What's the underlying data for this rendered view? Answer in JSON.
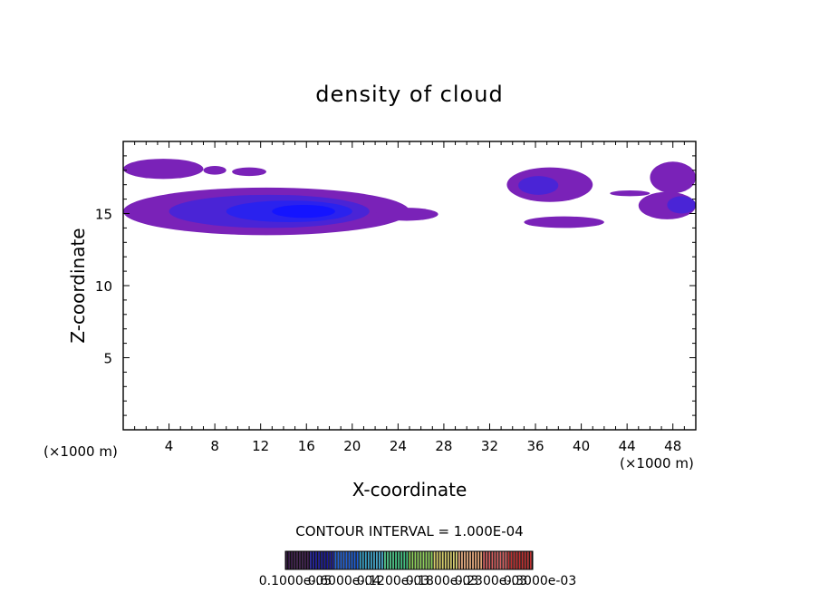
{
  "chart_data": {
    "type": "heatmap",
    "title": "density of cloud",
    "xlabel": "X-coordinate",
    "ylabel": "Z-coordinate",
    "x_unit_left": "(×1000 m)",
    "x_unit_right": "(×1000 m)",
    "xlim": [
      0,
      50
    ],
    "ylim": [
      0,
      20
    ],
    "x_ticks": [
      4,
      8,
      12,
      16,
      20,
      24,
      28,
      32,
      36,
      40,
      44,
      48
    ],
    "x_tick_labels": [
      "4",
      "8",
      "12",
      "16",
      "20",
      "24",
      "28",
      "32",
      "36",
      "40",
      "44",
      "48"
    ],
    "y_ticks": [
      5,
      10,
      15
    ],
    "y_tick_labels": [
      "5",
      "10",
      "15"
    ],
    "contour_interval_text": "CONTOUR INTERVAL = 1.000E-04",
    "colorbar_labels": [
      "0.1000e-05",
      "0.6000e-04",
      "0.1200e-03",
      "0.1800e-03",
      "0.2300e-03",
      "0.3000e-03"
    ],
    "colorbar_colors": [
      "#2a0a3a",
      "#1a1a9a",
      "#1e5fd8",
      "#33a0c8",
      "#3fbf7f",
      "#8fd35a",
      "#d9cf6a",
      "#e0a070",
      "#d86060",
      "#c03030"
    ],
    "regions": [
      {
        "x": [
          0,
          7
        ],
        "z": [
          17.4,
          18.8
        ],
        "level": 1
      },
      {
        "x": [
          7,
          9
        ],
        "z": [
          17.7,
          18.3
        ],
        "level": 1
      },
      {
        "x": [
          9.5,
          12.5
        ],
        "z": [
          17.6,
          18.2
        ],
        "level": 1
      },
      {
        "x": [
          0,
          25
        ],
        "z": [
          13.5,
          16.8
        ],
        "level": 1
      },
      {
        "x": [
          4,
          21.5
        ],
        "z": [
          14.0,
          16.3
        ],
        "level": 2
      },
      {
        "x": [
          9,
          20
        ],
        "z": [
          14.4,
          15.9
        ],
        "level": 3
      },
      {
        "x": [
          13,
          18.5
        ],
        "z": [
          14.7,
          15.6
        ],
        "level": 4
      },
      {
        "x": [
          22,
          27.5
        ],
        "z": [
          14.5,
          15.4
        ],
        "level": 1
      },
      {
        "x": [
          33.5,
          41
        ],
        "z": [
          15.8,
          18.2
        ],
        "level": 1
      },
      {
        "x": [
          34.5,
          38
        ],
        "z": [
          16.3,
          17.6
        ],
        "level": 2
      },
      {
        "x": [
          35,
          42
        ],
        "z": [
          14.0,
          14.8
        ],
        "level": 1
      },
      {
        "x": [
          42.5,
          46
        ],
        "z": [
          16.2,
          16.6
        ],
        "level": 1
      },
      {
        "x": [
          46,
          50
        ],
        "z": [
          16.4,
          18.6
        ],
        "level": 1
      },
      {
        "x": [
          45,
          50
        ],
        "z": [
          14.6,
          16.5
        ],
        "level": 1
      },
      {
        "x": [
          47.5,
          50
        ],
        "z": [
          15.0,
          16.2
        ],
        "level": 2
      }
    ]
  }
}
